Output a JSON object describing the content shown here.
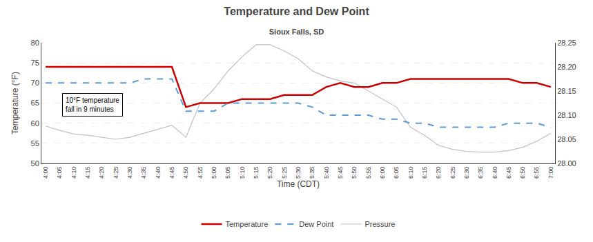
{
  "chart_data": {
    "type": "line",
    "title": "Temperature and Dew Point",
    "subtitle": "Sioux Falls, SD",
    "xlabel": "Time (CDT)",
    "ylabel": "Temperature (°F)",
    "annotation": "10°F temperature\nfall in 9 minutes",
    "categories": [
      "4:00",
      "4:05",
      "4:10",
      "4:15",
      "4:20",
      "4:25",
      "4:30",
      "4:35",
      "4:40",
      "4:45",
      "4:50",
      "4:55",
      "5:00",
      "5:05",
      "5:10",
      "5:15",
      "5:20",
      "5:25",
      "5:30",
      "5:35",
      "5:40",
      "5:45",
      "5:50",
      "5:55",
      "6:00",
      "6:05",
      "6:10",
      "6:15",
      "6:20",
      "6:25",
      "6:30",
      "6:35",
      "6:40",
      "6:45",
      "6:50",
      "6:55",
      "7:00"
    ],
    "series": [
      {
        "name": "Pressure",
        "color": "#c0c0c0",
        "line_style": "solid",
        "values": [
          59.3,
          58.2,
          57.3,
          57.0,
          56.5,
          56.0,
          56.5,
          57.5,
          58.5,
          59.5,
          56.5,
          65.0,
          68.5,
          73.0,
          76.5,
          79.5,
          79.5,
          78.0,
          76.0,
          73.0,
          71.5,
          70.5,
          70.0,
          68.0,
          66.0,
          64.0,
          59.0,
          57.0,
          54.5,
          53.5,
          53.0,
          52.8,
          52.8,
          53.2,
          54.0,
          55.5,
          57.5
        ]
      },
      {
        "name": "Temperature",
        "color": "#cc0000",
        "line_style": "solid",
        "values": [
          74,
          74,
          74,
          74,
          74,
          74,
          74,
          74,
          74,
          74,
          64,
          65,
          65,
          65,
          66,
          66,
          66,
          67,
          67,
          67,
          69,
          70,
          69,
          69,
          70,
          70,
          71,
          71,
          71,
          71,
          71,
          71,
          71,
          71,
          70,
          70,
          69
        ]
      },
      {
        "name": "Dew Point",
        "color": "#5b9bd5",
        "line_style": "dashed",
        "values": [
          70,
          70,
          70,
          70,
          70,
          70,
          70,
          71,
          71,
          71,
          63,
          63,
          63,
          65,
          65,
          65,
          65,
          65,
          65,
          64,
          62,
          62,
          62,
          62,
          61,
          61,
          60,
          60,
          59,
          59,
          59,
          59,
          59,
          60,
          60,
          60,
          59
        ]
      }
    ],
    "ylim": [
      50,
      80
    ],
    "yticks": [
      50,
      55,
      60,
      65,
      70,
      75,
      80
    ],
    "y2lim": [
      28,
      28.25
    ],
    "y2ticks": [
      {
        "value": 28,
        "label": "28.00"
      },
      {
        "value": 28.05,
        "label": "28.05"
      },
      {
        "value": 28.1,
        "label": "28.10"
      },
      {
        "value": 28.15,
        "label": "28.15"
      },
      {
        "value": 28.2,
        "label": "28.20"
      },
      {
        "value": 28.25,
        "label": "28.25"
      }
    ],
    "grid": true,
    "legend": "bottom"
  }
}
